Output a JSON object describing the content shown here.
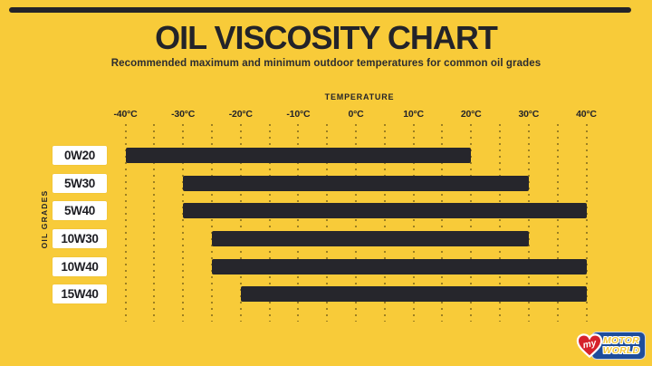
{
  "colors": {
    "background": "#F8CB39",
    "ink": "#232329",
    "bar": "#26262C",
    "label_box": "#FFFFFF",
    "logo_blue": "#1E4D9B",
    "logo_red": "#D6212B",
    "logo_gold": "#F6C937"
  },
  "chart_data": {
    "type": "bar",
    "orientation": "horizontal-range",
    "title": "OIL VISCOSITY CHART",
    "subtitle": "Recommended maximum and minimum outdoor temperatures for common oil grades",
    "xlabel": "TEMPERATURE",
    "ylabel": "OIL GRADES",
    "xlim": [
      -40,
      40
    ],
    "grid": true,
    "grid_interval_deg": 5,
    "x_ticks": [
      {
        "value": -40,
        "label": "-40°C"
      },
      {
        "value": -30,
        "label": "-30°C"
      },
      {
        "value": -20,
        "label": "-20°C"
      },
      {
        "value": -10,
        "label": "-10°C"
      },
      {
        "value": 0,
        "label": "0°C"
      },
      {
        "value": 10,
        "label": "10°C"
      },
      {
        "value": 20,
        "label": "20°C"
      },
      {
        "value": 30,
        "label": "30°C"
      },
      {
        "value": 40,
        "label": "40°C"
      }
    ],
    "categories": [
      "0W20",
      "5W30",
      "5W40",
      "10W30",
      "10W40",
      "15W40"
    ],
    "series": [
      {
        "name": "0W20",
        "min_temp_c": -40,
        "max_temp_c": 20
      },
      {
        "name": "5W30",
        "min_temp_c": -30,
        "max_temp_c": 30
      },
      {
        "name": "5W40",
        "min_temp_c": -30,
        "max_temp_c": 40
      },
      {
        "name": "10W30",
        "min_temp_c": -25,
        "max_temp_c": 30
      },
      {
        "name": "10W40",
        "min_temp_c": -25,
        "max_temp_c": 40
      },
      {
        "name": "15W40",
        "min_temp_c": -20,
        "max_temp_c": 40
      }
    ]
  },
  "logo": {
    "prefix": "my",
    "line1": "MOTOR",
    "line2": "WORLD"
  }
}
